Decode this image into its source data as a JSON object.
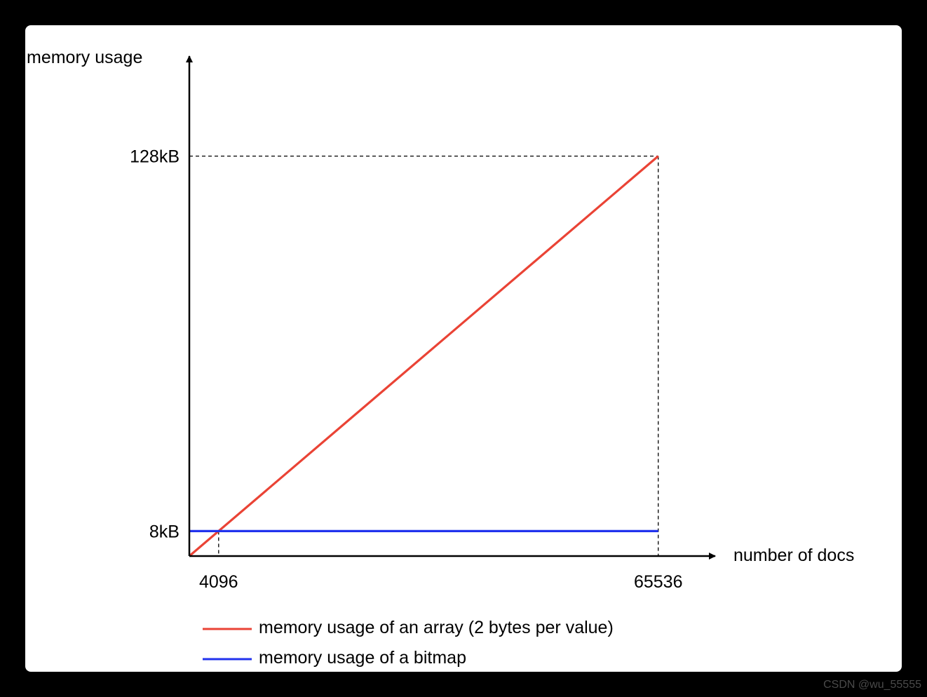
{
  "chart_data": {
    "type": "line",
    "xlabel": "number of docs",
    "ylabel": "memory usage",
    "x_ticks": [
      {
        "value": 4096,
        "label": "4096"
      },
      {
        "value": 65536,
        "label": "65536"
      }
    ],
    "y_ticks": [
      {
        "value": 8,
        "label": "8kB"
      },
      {
        "value": 128,
        "label": "128kB"
      }
    ],
    "xlim": [
      0,
      73500
    ],
    "ylim": [
      0,
      160
    ],
    "series": [
      {
        "name": "memory usage of an array (2 bytes per value)",
        "color": "#ea4335",
        "x": [
          0,
          65536
        ],
        "y": [
          0,
          128
        ]
      },
      {
        "name": "memory usage of a bitmap",
        "color": "#2233ee",
        "x": [
          0,
          65536
        ],
        "y": [
          8,
          8
        ]
      }
    ],
    "grid": false,
    "legend_position": "bottom"
  },
  "watermark": "CSDN @wu_55555"
}
